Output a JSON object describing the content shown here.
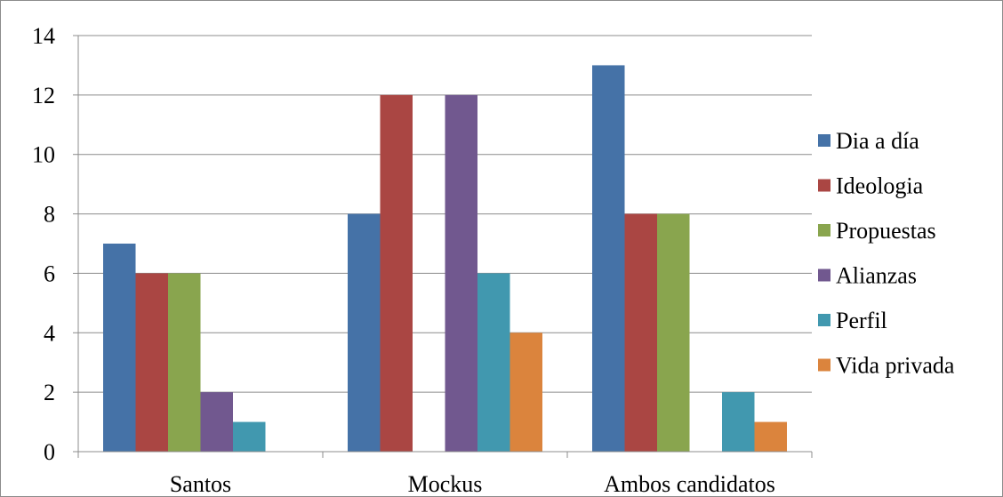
{
  "chart_data": {
    "type": "bar",
    "categories": [
      "Santos",
      "Mockus",
      "Ambos candidatos"
    ],
    "series": [
      {
        "name": "Dia a día",
        "color": "#4572A7",
        "values": [
          7,
          8,
          13
        ]
      },
      {
        "name": "Ideologia",
        "color": "#AA4643",
        "values": [
          6,
          12,
          8
        ]
      },
      {
        "name": "Propuestas",
        "color": "#89A54E",
        "values": [
          6,
          0,
          8
        ]
      },
      {
        "name": "Alianzas",
        "color": "#71588F",
        "values": [
          2,
          12,
          0
        ]
      },
      {
        "name": "Perfil",
        "color": "#4198AF",
        "values": [
          1,
          6,
          2
        ]
      },
      {
        "name": "Vida privada",
        "color": "#DB843D",
        "values": [
          0,
          4,
          1
        ]
      }
    ],
    "yticks": [
      "0",
      "2",
      "4",
      "6",
      "8",
      "10",
      "12",
      "14"
    ],
    "ylim": [
      0,
      14
    ],
    "grid": true,
    "legend_position": "right"
  }
}
